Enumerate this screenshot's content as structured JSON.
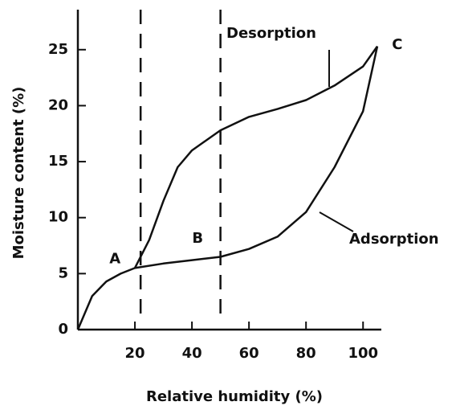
{
  "chart_data": {
    "type": "line",
    "x_label": "Relative humidity (%)",
    "y_label": "Moisture content (%)",
    "series": [
      {
        "name": "Desorption",
        "color": "#111111",
        "x": [
          20,
          25,
          30,
          35,
          40,
          50,
          60,
          70,
          80,
          90,
          100,
          105
        ],
        "values": [
          5.5,
          8,
          11.5,
          14.5,
          16,
          17.8,
          19,
          19.7,
          20.5,
          21.8,
          23.5,
          25.3
        ]
      },
      {
        "name": "Adsorption",
        "color": "#111111",
        "x": [
          0,
          5,
          10,
          15,
          20,
          30,
          40,
          50,
          60,
          70,
          80,
          90,
          100,
          105
        ],
        "values": [
          0,
          3,
          4.3,
          5,
          5.5,
          5.9,
          6.2,
          6.5,
          7.2,
          8.3,
          10.5,
          14.5,
          19.5,
          25.3
        ]
      }
    ],
    "annotations": [
      {
        "text": "A",
        "x": 13,
        "y": 6.3
      },
      {
        "text": "B",
        "x": 42,
        "y": 8.1
      },
      {
        "text": "C",
        "x": 112,
        "y": 25.4
      }
    ],
    "vlines": [
      22,
      50
    ],
    "xlim": [
      0,
      105
    ],
    "ylim": [
      0,
      28
    ],
    "xticks": [
      20,
      40,
      60,
      80,
      100
    ],
    "yticks": [
      0,
      5,
      10,
      15,
      20,
      25
    ]
  }
}
